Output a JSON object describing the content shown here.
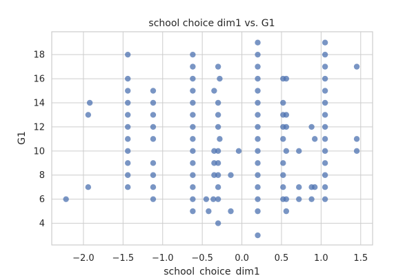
{
  "chart_data": {
    "type": "scatter",
    "title": "school choice dim1 vs. G1",
    "xlabel": "school_choice_dim1",
    "ylabel": "G1",
    "xlim": [
      -2.4,
      1.65
    ],
    "ylim": [
      2.2,
      19.9
    ],
    "xticks": [
      -2.0,
      -1.5,
      -1.0,
      -0.5,
      0.0,
      0.5,
      1.0,
      1.5
    ],
    "xtick_labels": [
      "−2.0",
      "−1.5",
      "−1.0",
      "−0.5",
      "0.0",
      "0.5",
      "1.0",
      "1.5"
    ],
    "yticks": [
      4,
      6,
      8,
      10,
      12,
      14,
      16,
      18
    ],
    "ytick_labels": [
      "4",
      "6",
      "8",
      "10",
      "12",
      "14",
      "16",
      "18"
    ],
    "grid": true,
    "marker_color": "#4c72b0",
    "series": [
      {
        "points": [
          [
            -2.22,
            6
          ],
          [
            -1.94,
            7
          ],
          [
            -1.94,
            13
          ],
          [
            -1.92,
            14
          ],
          [
            -1.44,
            7
          ],
          [
            -1.44,
            8
          ],
          [
            -1.44,
            9
          ],
          [
            -1.44,
            10
          ],
          [
            -1.44,
            11
          ],
          [
            -1.44,
            12
          ],
          [
            -1.44,
            13
          ],
          [
            -1.44,
            14
          ],
          [
            -1.44,
            15
          ],
          [
            -1.44,
            16
          ],
          [
            -1.44,
            18
          ],
          [
            -1.12,
            6
          ],
          [
            -1.12,
            7
          ],
          [
            -1.12,
            8
          ],
          [
            -1.12,
            9
          ],
          [
            -1.12,
            11
          ],
          [
            -1.12,
            12
          ],
          [
            -1.12,
            13
          ],
          [
            -1.12,
            14
          ],
          [
            -1.12,
            15
          ],
          [
            -0.62,
            5
          ],
          [
            -0.62,
            6
          ],
          [
            -0.62,
            7
          ],
          [
            -0.62,
            8
          ],
          [
            -0.62,
            9
          ],
          [
            -0.62,
            10
          ],
          [
            -0.62,
            11
          ],
          [
            -0.62,
            12
          ],
          [
            -0.62,
            13
          ],
          [
            -0.62,
            14
          ],
          [
            -0.62,
            15
          ],
          [
            -0.62,
            16
          ],
          [
            -0.62,
            17
          ],
          [
            -0.62,
            18
          ],
          [
            -0.45,
            6
          ],
          [
            -0.42,
            5
          ],
          [
            -0.36,
            6
          ],
          [
            -0.35,
            10
          ],
          [
            -0.35,
            9
          ],
          [
            -0.35,
            8
          ],
          [
            -0.35,
            15
          ],
          [
            -0.3,
            4
          ],
          [
            -0.3,
            6
          ],
          [
            -0.3,
            7
          ],
          [
            -0.3,
            8
          ],
          [
            -0.3,
            9
          ],
          [
            -0.3,
            10
          ],
          [
            -0.28,
            11
          ],
          [
            -0.3,
            12
          ],
          [
            -0.3,
            13
          ],
          [
            -0.3,
            14
          ],
          [
            -0.28,
            16
          ],
          [
            -0.3,
            17
          ],
          [
            -0.14,
            5
          ],
          [
            -0.14,
            8
          ],
          [
            -0.04,
            10
          ],
          [
            0.2,
            3
          ],
          [
            0.2,
            5
          ],
          [
            0.2,
            6
          ],
          [
            0.2,
            7
          ],
          [
            0.2,
            8
          ],
          [
            0.2,
            9
          ],
          [
            0.2,
            10
          ],
          [
            0.2,
            11
          ],
          [
            0.2,
            12
          ],
          [
            0.2,
            13
          ],
          [
            0.2,
            14
          ],
          [
            0.2,
            15
          ],
          [
            0.2,
            16
          ],
          [
            0.2,
            17
          ],
          [
            0.2,
            18
          ],
          [
            0.2,
            19
          ],
          [
            0.52,
            6
          ],
          [
            0.52,
            7
          ],
          [
            0.52,
            8
          ],
          [
            0.52,
            9
          ],
          [
            0.52,
            11
          ],
          [
            0.52,
            12
          ],
          [
            0.52,
            13
          ],
          [
            0.52,
            14
          ],
          [
            0.52,
            16
          ],
          [
            0.56,
            5
          ],
          [
            0.56,
            6
          ],
          [
            0.56,
            10
          ],
          [
            0.56,
            12
          ],
          [
            0.56,
            13
          ],
          [
            0.56,
            16
          ],
          [
            0.72,
            6
          ],
          [
            0.72,
            7
          ],
          [
            0.72,
            10
          ],
          [
            0.88,
            6
          ],
          [
            0.88,
            7
          ],
          [
            0.88,
            12
          ],
          [
            0.92,
            7
          ],
          [
            0.92,
            11
          ],
          [
            1.05,
            6
          ],
          [
            1.05,
            7
          ],
          [
            1.05,
            8
          ],
          [
            1.05,
            9
          ],
          [
            1.05,
            10
          ],
          [
            1.05,
            11
          ],
          [
            1.05,
            12
          ],
          [
            1.05,
            13
          ],
          [
            1.05,
            14
          ],
          [
            1.05,
            15
          ],
          [
            1.05,
            16
          ],
          [
            1.05,
            17
          ],
          [
            1.05,
            18
          ],
          [
            1.05,
            19
          ],
          [
            1.45,
            10
          ],
          [
            1.45,
            11
          ],
          [
            1.45,
            17
          ]
        ]
      }
    ]
  }
}
